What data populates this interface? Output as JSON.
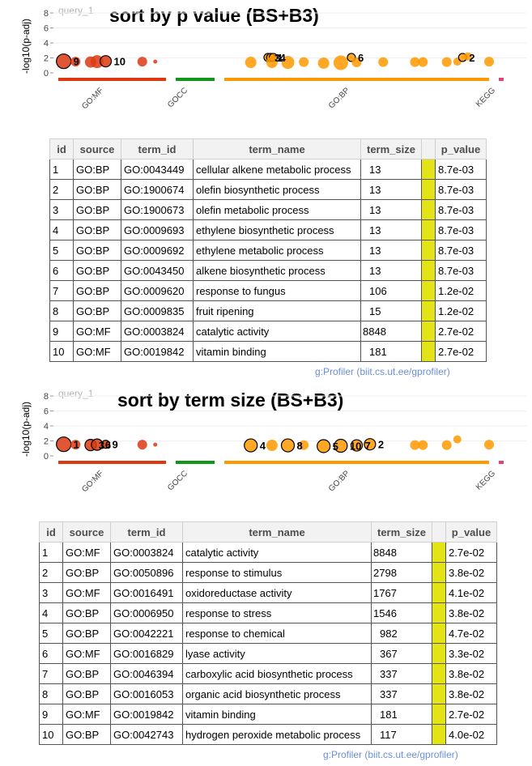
{
  "chart_data": [
    {
      "type": "scatter",
      "query": "query_1",
      "title": "sort by p value (BS+B3)",
      "ylabel": "-log10(p-adj)",
      "ylim": [
        0,
        8
      ],
      "yticks": [
        "0",
        "2",
        "4",
        "6",
        "8"
      ],
      "sources": [
        {
          "name": "GO:MF",
          "color": "#dc3912"
        },
        {
          "name": "GOCC",
          "color": "#109618"
        },
        {
          "name": "GO:BP",
          "color": "#ff9900"
        },
        {
          "name": "KEGG",
          "color": "#dd4477"
        }
      ],
      "points": [
        {
          "source": "GO:MF",
          "x": 0.05,
          "y": 1.55,
          "size": 9,
          "label": "9",
          "highlight": true
        },
        {
          "source": "GO:MF",
          "x": 0.16,
          "y": 1.5,
          "size": 6
        },
        {
          "source": "GO:MF",
          "x": 0.3,
          "y": 1.45,
          "size": 7
        },
        {
          "source": "GO:MF",
          "x": 0.36,
          "y": 1.5,
          "size": 8
        },
        {
          "source": "GO:MF",
          "x": 0.44,
          "y": 1.55,
          "size": 7,
          "label": "10",
          "highlight": true
        },
        {
          "source": "GO:MF",
          "x": 0.78,
          "y": 1.5,
          "size": 6
        },
        {
          "source": "GO:MF",
          "x": 0.9,
          "y": 1.5,
          "size": 2.5
        },
        {
          "source": "GO:BP",
          "x": 0.1,
          "y": 1.4,
          "size": 7
        },
        {
          "source": "GO:BP",
          "x": 0.165,
          "y": 2.06,
          "size": 5,
          "label": "3",
          "highlight": true
        },
        {
          "source": "GO:BP",
          "x": 0.175,
          "y": 2.06,
          "size": 5,
          "label": "1",
          "highlight": true
        },
        {
          "source": "GO:BP",
          "x": 0.185,
          "y": 2.06,
          "size": 5,
          "label": "4",
          "highlight": true
        },
        {
          "source": "GO:BP",
          "x": 0.18,
          "y": 1.4,
          "size": 7
        },
        {
          "source": "GO:BP",
          "x": 0.24,
          "y": 1.4,
          "size": 8
        },
        {
          "source": "GO:BP",
          "x": 0.3,
          "y": 1.45,
          "size": 6
        },
        {
          "source": "GO:BP",
          "x": 0.375,
          "y": 1.3,
          "size": 7
        },
        {
          "source": "GO:BP",
          "x": 0.44,
          "y": 1.35,
          "size": 9
        },
        {
          "source": "GO:BP",
          "x": 0.48,
          "y": 2.06,
          "size": 5,
          "label": "6",
          "highlight": true
        },
        {
          "source": "GO:BP",
          "x": 0.5,
          "y": 1.4,
          "size": 6
        },
        {
          "source": "GO:BP",
          "x": 0.6,
          "y": 1.45,
          "size": 6
        },
        {
          "source": "GO:BP",
          "x": 0.72,
          "y": 1.45,
          "size": 6
        },
        {
          "source": "GO:BP",
          "x": 0.75,
          "y": 1.45,
          "size": 6
        },
        {
          "source": "GO:BP",
          "x": 0.84,
          "y": 1.45,
          "size": 6
        },
        {
          "source": "GO:BP",
          "x": 0.88,
          "y": 1.5,
          "size": 5
        },
        {
          "source": "GO:BP",
          "x": 0.9,
          "y": 2.06,
          "size": 5,
          "label": "2",
          "highlight": true
        },
        {
          "source": "GO:BP",
          "x": 0.92,
          "y": 2.2,
          "size": 5
        },
        {
          "source": "GO:BP",
          "x": 1.0,
          "y": 1.5,
          "size": 6
        }
      ]
    },
    {
      "type": "scatter",
      "query": "query_1",
      "title": "sort by term size (BS+B3)",
      "ylabel": "-log10(p-adj)",
      "ylim": [
        0,
        8
      ],
      "yticks": [
        "0",
        "2",
        "4",
        "6",
        "8"
      ],
      "sources": [
        {
          "name": "GO:MF",
          "color": "#dc3912"
        },
        {
          "name": "GOCC",
          "color": "#109618"
        },
        {
          "name": "GO:BP",
          "color": "#ff9900"
        },
        {
          "name": "KEGG",
          "color": "#dd4477"
        }
      ],
      "points": [
        {
          "source": "GO:MF",
          "x": 0.05,
          "y": 1.55,
          "size": 9,
          "label": "1",
          "highlight": true
        },
        {
          "source": "GO:MF",
          "x": 0.16,
          "y": 1.5,
          "size": 6
        },
        {
          "source": "GO:MF",
          "x": 0.3,
          "y": 1.45,
          "size": 7,
          "label": "3",
          "highlight": true
        },
        {
          "source": "GO:MF",
          "x": 0.36,
          "y": 1.5,
          "size": 7,
          "label": "6",
          "highlight": true
        },
        {
          "source": "GO:MF",
          "x": 0.44,
          "y": 1.55,
          "size": 5,
          "label": "9",
          "highlight": true
        },
        {
          "source": "GO:MF",
          "x": 0.78,
          "y": 1.5,
          "size": 6
        },
        {
          "source": "GO:MF",
          "x": 0.9,
          "y": 1.5,
          "size": 2.5
        },
        {
          "source": "GO:BP",
          "x": 0.1,
          "y": 1.4,
          "size": 8,
          "label": "4",
          "highlight": true
        },
        {
          "source": "GO:BP",
          "x": 0.18,
          "y": 1.4,
          "size": 7
        },
        {
          "source": "GO:BP",
          "x": 0.24,
          "y": 1.4,
          "size": 8,
          "label": "8",
          "highlight": true
        },
        {
          "source": "GO:BP",
          "x": 0.3,
          "y": 1.45,
          "size": 6
        },
        {
          "source": "GO:BP",
          "x": 0.375,
          "y": 1.3,
          "size": 8,
          "label": "5",
          "highlight": true
        },
        {
          "source": "GO:BP",
          "x": 0.44,
          "y": 1.35,
          "size": 8,
          "label": "10",
          "highlight": true
        },
        {
          "source": "GO:BP",
          "x": 0.5,
          "y": 1.4,
          "size": 7,
          "label": "7",
          "highlight": true
        },
        {
          "source": "GO:BP",
          "x": 0.55,
          "y": 1.55,
          "size": 7,
          "label": "2",
          "highlight": true
        },
        {
          "source": "GO:BP",
          "x": 0.72,
          "y": 1.45,
          "size": 6
        },
        {
          "source": "GO:BP",
          "x": 0.75,
          "y": 1.45,
          "size": 6
        },
        {
          "source": "GO:BP",
          "x": 0.84,
          "y": 1.45,
          "size": 6
        },
        {
          "source": "GO:BP",
          "x": 0.88,
          "y": 2.2,
          "size": 5
        },
        {
          "source": "GO:BP",
          "x": 1.0,
          "y": 1.5,
          "size": 6
        }
      ]
    }
  ],
  "tables": [
    {
      "columns": [
        "id",
        "source",
        "term_id",
        "term_name",
        "term_size",
        "",
        "p_value"
      ],
      "rows": [
        [
          "1",
          "GO:BP",
          "GO:0043449",
          "cellular alkene metabolic process",
          "13",
          "8.7e-03"
        ],
        [
          "2",
          "GO:BP",
          "GO:1900674",
          "olefin biosynthetic process",
          "13",
          "8.7e-03"
        ],
        [
          "3",
          "GO:BP",
          "GO:1900673",
          "olefin metabolic process",
          "13",
          "8.7e-03"
        ],
        [
          "4",
          "GO:BP",
          "GO:0009693",
          "ethylene biosynthetic process",
          "13",
          "8.7e-03"
        ],
        [
          "5",
          "GO:BP",
          "GO:0009692",
          "ethylene metabolic process",
          "13",
          "8.7e-03"
        ],
        [
          "6",
          "GO:BP",
          "GO:0043450",
          "alkene biosynthetic process",
          "13",
          "8.7e-03"
        ],
        [
          "7",
          "GO:BP",
          "GO:0009620",
          "response to fungus",
          "106",
          "1.2e-02"
        ],
        [
          "8",
          "GO:BP",
          "GO:0009835",
          "fruit ripening",
          "15",
          "1.2e-02"
        ],
        [
          "9",
          "GO:MF",
          "GO:0003824",
          "catalytic activity",
          "8848",
          "2.7e-02"
        ],
        [
          "10",
          "GO:MF",
          "GO:0019842",
          "vitamin binding",
          "181",
          "2.7e-02"
        ]
      ],
      "credit": "g:Profiler (biit.cs.ut.ee/gprofiler)"
    },
    {
      "columns": [
        "id",
        "source",
        "term_id",
        "term_name",
        "term_size",
        "",
        "p_value"
      ],
      "rows": [
        [
          "1",
          "GO:MF",
          "GO:0003824",
          "catalytic activity",
          "8848",
          "2.7e-02"
        ],
        [
          "2",
          "GO:BP",
          "GO:0050896",
          "response to stimulus",
          "2798",
          "3.8e-02"
        ],
        [
          "3",
          "GO:MF",
          "GO:0016491",
          "oxidoreductase activity",
          "1767",
          "4.1e-02"
        ],
        [
          "4",
          "GO:BP",
          "GO:0006950",
          "response to stress",
          "1546",
          "3.8e-02"
        ],
        [
          "5",
          "GO:BP",
          "GO:0042221",
          "response to chemical",
          "982",
          "4.7e-02"
        ],
        [
          "6",
          "GO:MF",
          "GO:0016829",
          "lyase activity",
          "367",
          "3.3e-02"
        ],
        [
          "7",
          "GO:BP",
          "GO:0046394",
          "carboxylic acid biosynthetic process",
          "337",
          "3.8e-02"
        ],
        [
          "8",
          "GO:BP",
          "GO:0016053",
          "organic acid biosynthetic process",
          "337",
          "3.8e-02"
        ],
        [
          "9",
          "GO:MF",
          "GO:0019842",
          "vitamin binding",
          "181",
          "2.7e-02"
        ],
        [
          "10",
          "GO:BP",
          "GO:0042743",
          "hydrogen peroxide metabolic process",
          "117",
          "4.0e-02"
        ]
      ],
      "credit": "g:Profiler (biit.cs.ut.ee/gprofiler)"
    }
  ]
}
